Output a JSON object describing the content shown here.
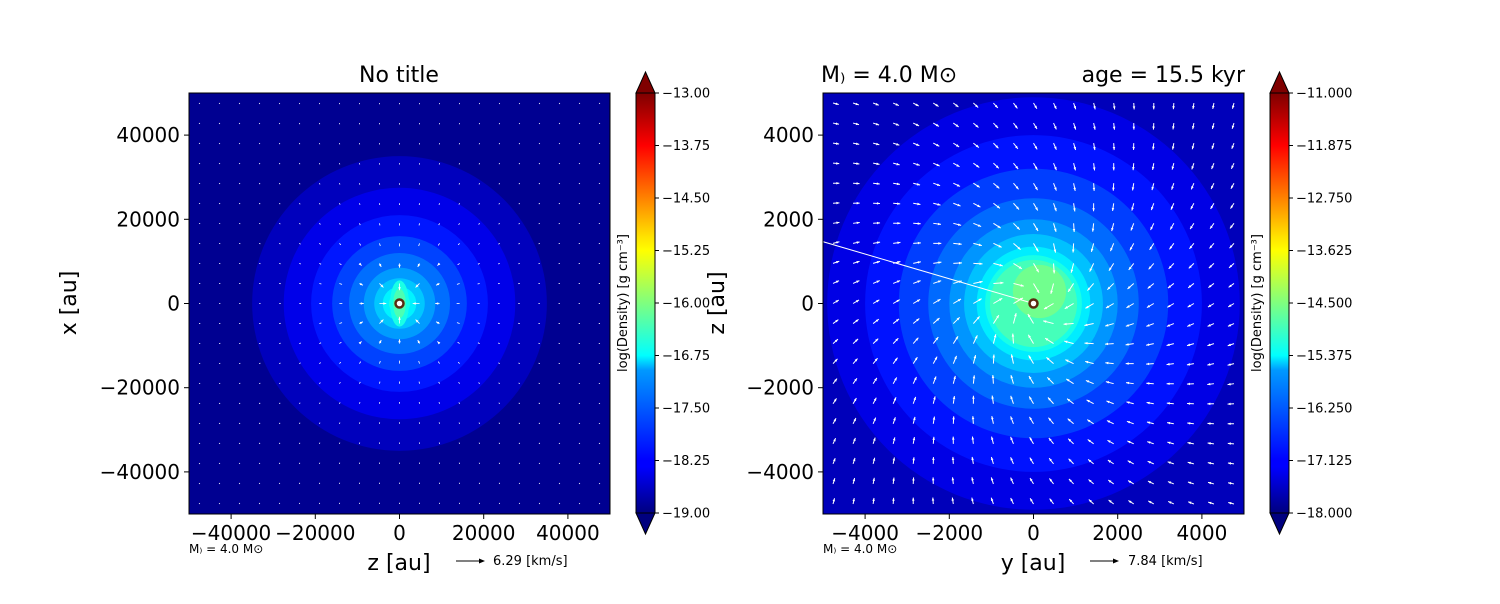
{
  "chart_data": [
    {
      "type": "heatmap",
      "title": "No title",
      "xlabel": "z [au]",
      "ylabel": "x [au]",
      "xlim": [
        -50000,
        50000
      ],
      "ylim": [
        -50000,
        50000
      ],
      "xticks": [
        -40000,
        -20000,
        0,
        20000,
        40000
      ],
      "yticks": [
        -40000,
        -20000,
        0,
        20000,
        40000
      ],
      "xtick_labels": [
        "−40000",
        "−20000",
        "0",
        "20000",
        "40000"
      ],
      "ytick_labels": [
        "−40000",
        "−20000",
        "0",
        "20000",
        "40000"
      ],
      "colorbar": {
        "label": "log(Density) [g cm⁻³]",
        "min": -19.0,
        "max": -13.0,
        "ticks": [
          -13.0,
          -13.75,
          -14.5,
          -15.25,
          -16.0,
          -16.75,
          -17.5,
          -18.25,
          -19.0
        ],
        "tick_labels": [
          "−13.00",
          "−13.75",
          "−14.50",
          "−15.25",
          "−16.00",
          "−16.75",
          "−17.50",
          "−18.25",
          "−19.00"
        ],
        "colormap": "jet",
        "extend": "both"
      },
      "star_note": "M₎ = 4.0 M⊙",
      "velocity_key": "6.29 [km/s]",
      "density_peak": -16.3,
      "density_background": -18.9,
      "arrow_pattern": "converging"
    },
    {
      "type": "heatmap",
      "title_left": "M₎ = 4.0 M⊙",
      "title_right": "age = 15.5 kyr",
      "xlabel": "y [au]",
      "ylabel": "z [au]",
      "xlim": [
        -5000,
        5000
      ],
      "ylim": [
        -5000,
        5000
      ],
      "xticks": [
        -4000,
        -2000,
        0,
        2000,
        4000
      ],
      "yticks": [
        -4000,
        -2000,
        0,
        2000,
        4000
      ],
      "xtick_labels": [
        "−4000",
        "−2000",
        "0",
        "2000",
        "4000"
      ],
      "ytick_labels": [
        "−4000",
        "−2000",
        "0",
        "2000",
        "4000"
      ],
      "colorbar": {
        "label": "log(Density) [g cm⁻³]",
        "min": -18.0,
        "max": -11.0,
        "ticks": [
          -11.0,
          -11.875,
          -12.75,
          -13.625,
          -14.5,
          -15.375,
          -16.25,
          -17.125,
          -18.0
        ],
        "tick_labels": [
          "−11.000",
          "−11.875",
          "−12.750",
          "−13.625",
          "−14.500",
          "−15.375",
          "−16.250",
          "−17.125",
          "−18.000"
        ],
        "colormap": "jet",
        "extend": "both"
      },
      "star_note": "M₎ = 4.0 M⊙",
      "velocity_key": "7.84 [km/s]",
      "density_peak": -14.9,
      "density_background": -17.6,
      "arrow_pattern": "rotating-infall"
    }
  ]
}
